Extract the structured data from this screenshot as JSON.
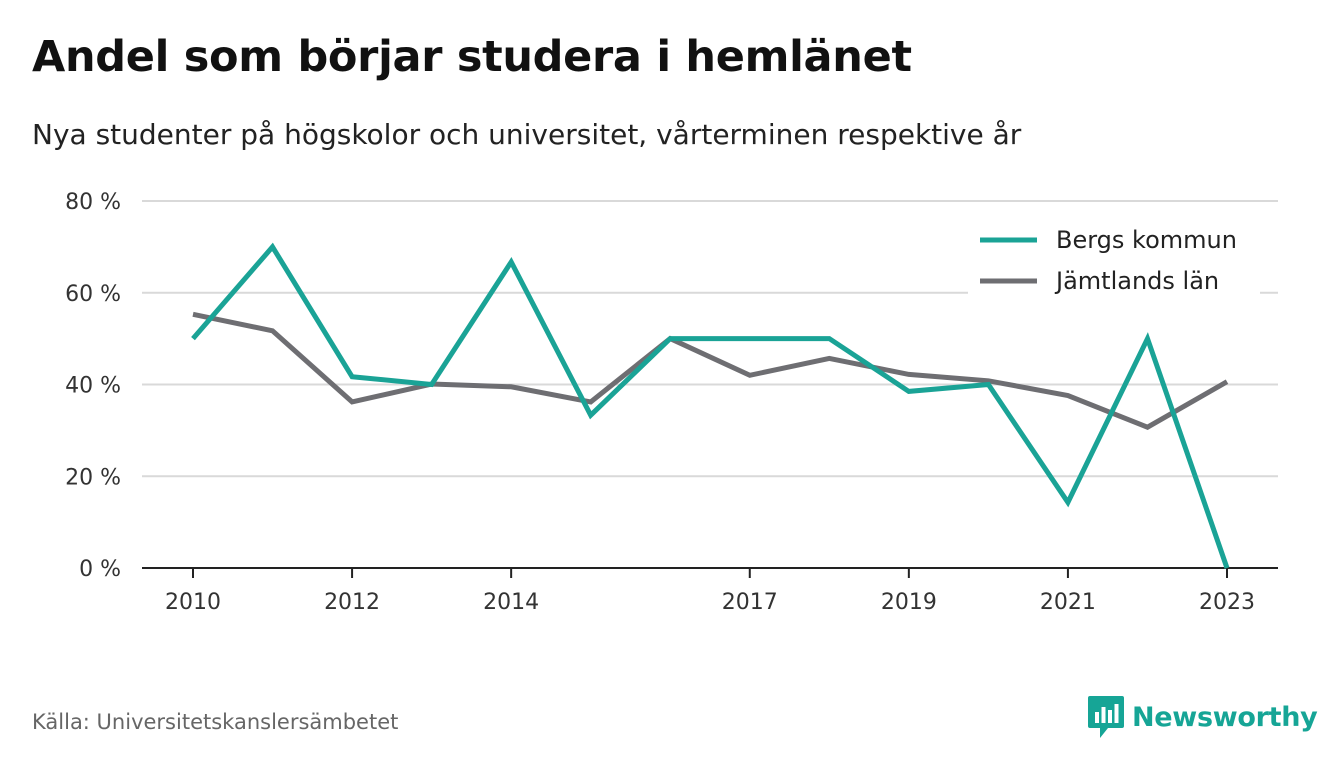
{
  "title": "Andel som börjar studera i hemlänet",
  "subtitle": "Nya studenter på högskolor och universitet, vårterminen respektive år",
  "source": "Källa: Universitetskanslersämbetet",
  "brand": {
    "name": "Newsworthy",
    "icon": "newsworthy-logo-icon"
  },
  "colors": {
    "bergs": "#1aa396",
    "jamtland": "#6e6e72",
    "grid": "#d9d9d9",
    "axis": "#222222"
  },
  "chart_data": {
    "type": "line",
    "x": [
      2010,
      2011,
      2012,
      2013,
      2014,
      2015,
      2016,
      2017,
      2018,
      2019,
      2020,
      2021,
      2022,
      2023
    ],
    "x_tick_labels": [
      "2010",
      "2012",
      "2014",
      "2017",
      "2019",
      "2021",
      "2023"
    ],
    "x_tick_values": [
      2010,
      2012,
      2014,
      2017,
      2019,
      2021,
      2023
    ],
    "ylim": [
      0,
      80
    ],
    "y_ticks": [
      0,
      20,
      40,
      60,
      80
    ],
    "y_tick_labels": [
      "0 %",
      "20 %",
      "40 %",
      "60 %",
      "80 %"
    ],
    "grid": true,
    "legend_position": "top-right",
    "series": [
      {
        "name": "Bergs kommun",
        "color": "#1aa396",
        "values": [
          50,
          70,
          41.7,
          40,
          66.7,
          33.3,
          50,
          50,
          50,
          38.5,
          40,
          14.3,
          50,
          0
        ]
      },
      {
        "name": "Jämtlands län",
        "color": "#6e6e72",
        "values": [
          55.3,
          51.7,
          36.2,
          40.1,
          39.5,
          36.2,
          50,
          42,
          45.7,
          42.2,
          40.8,
          37.6,
          30.7,
          40.6
        ]
      }
    ]
  }
}
